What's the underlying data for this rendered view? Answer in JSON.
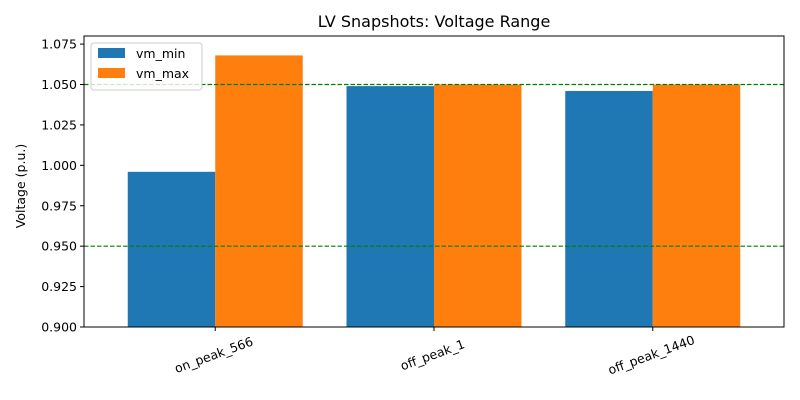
{
  "chart_data": {
    "type": "bar",
    "title": "LV Snapshots: Voltage Range",
    "xlabel": "",
    "ylabel": "Voltage (p.u.)",
    "categories": [
      "on_peak_566",
      "off_peak_1",
      "off_peak_1440"
    ],
    "series": [
      {
        "name": "vm_min",
        "color": "#1f77b4",
        "values": [
          0.996,
          1.049,
          1.046
        ]
      },
      {
        "name": "vm_max",
        "color": "#ff7f0e",
        "values": [
          1.068,
          1.05,
          1.05
        ]
      }
    ],
    "ylim": [
      0.9,
      1.08
    ],
    "yticks": [
      "0.900",
      "0.925",
      "0.950",
      "0.975",
      "1.000",
      "1.025",
      "1.050",
      "1.075"
    ],
    "reference_lines": [
      {
        "value": 0.95,
        "color": "#008000",
        "style": "dashed"
      },
      {
        "value": 1.05,
        "color": "#008000",
        "style": "dashed"
      }
    ],
    "legend_position": "top-left",
    "grid": false,
    "xtick_rotation": -20
  }
}
